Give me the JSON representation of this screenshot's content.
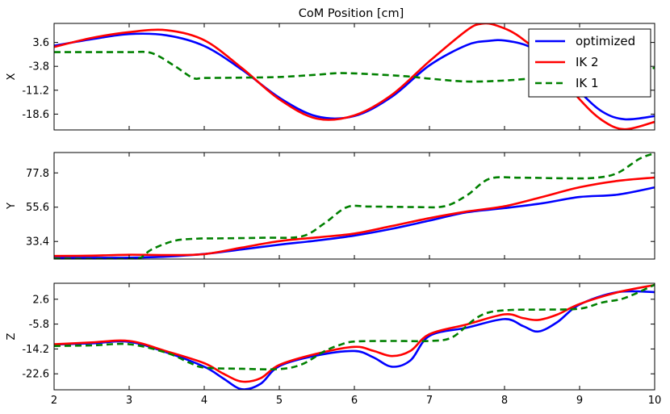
{
  "chart_data": [
    {
      "type": "line",
      "title": "CoM Position [cm]",
      "ylabel": "X",
      "xlim": [
        2,
        10
      ],
      "ylim": [
        -23.5,
        9.5
      ],
      "yticks": [
        3.6,
        -3.8,
        -11.2,
        -18.6
      ],
      "grid": false,
      "legend": {
        "placement": "top-right",
        "entries": [
          "optimized",
          "IK 2",
          "IK 1"
        ]
      },
      "series": [
        {
          "name": "optimized",
          "color": "#0000ff",
          "style": "solid",
          "x": [
            2,
            2.5,
            3,
            3.5,
            4,
            4.5,
            5,
            5.5,
            6,
            6.5,
            7,
            7.5,
            7.8,
            8,
            8.3,
            8.6,
            9,
            9.3,
            9.6,
            10
          ],
          "y": [
            2.6,
            4.6,
            6.2,
            5.8,
            2.5,
            -4.8,
            -13.5,
            -19.3,
            -19.2,
            -13.2,
            -3.5,
            2.8,
            4.1,
            4.2,
            2.6,
            -1.6,
            -11.6,
            -17.8,
            -20.2,
            -19.2
          ]
        },
        {
          "name": "IK 2",
          "color": "#ff0000",
          "style": "solid",
          "x": [
            2,
            2.5,
            3,
            3.5,
            4,
            4.5,
            5,
            5.5,
            6,
            6.5,
            7,
            7.5,
            7.7,
            7.9,
            8.2,
            8.6,
            9,
            9.3,
            9.6,
            10
          ],
          "y": [
            2.2,
            5.0,
            6.8,
            7.4,
            4.3,
            -4.3,
            -14.0,
            -20.0,
            -19.0,
            -12.6,
            -2.2,
            7.4,
            9.4,
            8.8,
            5.4,
            -2.8,
            -14.0,
            -20.5,
            -23.3,
            -21.0
          ],
          "note": ""
        },
        {
          "name": "IK 1",
          "color": "#008000",
          "style": "dashed",
          "x": [
            2,
            2.5,
            3,
            3.3,
            3.6,
            3.85,
            4,
            4.5,
            5,
            5.5,
            5.8,
            6.2,
            6.7,
            7,
            7.5,
            8,
            8.5,
            9,
            9.5,
            10
          ],
          "y": [
            0.6,
            0.6,
            0.6,
            0.3,
            -3.6,
            -7.4,
            -7.4,
            -7.3,
            -7.1,
            -6.4,
            -5.9,
            -6.2,
            -6.9,
            -7.6,
            -8.5,
            -8.2,
            -7.4,
            -7.6,
            -8.2,
            -4.2
          ]
        }
      ]
    },
    {
      "type": "line",
      "ylabel": "Y",
      "xlim": [
        2,
        10
      ],
      "ylim": [
        22,
        91
      ],
      "yticks": [
        77.8,
        55.6,
        33.4
      ],
      "grid": false,
      "series": [
        {
          "name": "optimized",
          "color": "#0000ff",
          "style": "solid",
          "x": [
            2,
            2.5,
            3,
            3.5,
            4,
            4.5,
            5,
            5.5,
            6,
            6.5,
            7,
            7.5,
            8,
            8.5,
            9,
            9.5,
            10
          ],
          "y": [
            22.8,
            22.8,
            22.9,
            23.6,
            25.3,
            28.2,
            31.3,
            34.0,
            37.2,
            41.6,
            46.9,
            52.3,
            55.0,
            58.1,
            62.2,
            63.7,
            68.4
          ]
        },
        {
          "name": "IK 2",
          "color": "#ff0000",
          "style": "solid",
          "x": [
            2,
            2.5,
            3,
            3.5,
            4,
            4.5,
            5,
            5.5,
            6,
            6.5,
            7,
            7.5,
            8,
            8.5,
            9,
            9.5,
            10
          ],
          "y": [
            24.0,
            24.2,
            24.8,
            24.6,
            25.2,
            29.4,
            33.6,
            36.0,
            38.5,
            43.4,
            48.5,
            52.8,
            56.2,
            62.2,
            68.5,
            72.6,
            74.8
          ]
        },
        {
          "name": "IK 1",
          "color": "#008000",
          "style": "dashed",
          "x": [
            2,
            2.5,
            3,
            3.15,
            3.3,
            3.6,
            3.9,
            4.2,
            4.8,
            5.3,
            5.6,
            5.9,
            6.2,
            6.8,
            7.2,
            7.5,
            7.8,
            8.2,
            8.8,
            9.2,
            9.5,
            9.8,
            10
          ],
          "y": [
            22.3,
            22.0,
            22.0,
            22.8,
            28.2,
            33.8,
            35.2,
            35.4,
            35.8,
            36.7,
            45.1,
            55.6,
            56.0,
            55.7,
            56.2,
            63.3,
            74.0,
            74.7,
            74.3,
            74.6,
            77.6,
            87.0,
            90.5
          ]
        }
      ]
    },
    {
      "type": "line",
      "ylabel": "Z",
      "xlim": [
        2,
        10
      ],
      "ylim": [
        -28,
        8
      ],
      "yticks": [
        2.6,
        -5.8,
        -14.2,
        -22.6
      ],
      "xticks": [
        2,
        3,
        4,
        5,
        6,
        7,
        8,
        9,
        10
      ],
      "grid": false,
      "series": [
        {
          "name": "optimized",
          "color": "#0000ff",
          "style": "solid",
          "x": [
            2,
            2.5,
            3,
            3.5,
            4,
            4.25,
            4.5,
            4.75,
            5,
            5.5,
            6,
            6.25,
            6.5,
            6.75,
            7,
            7.5,
            8,
            8.25,
            8.45,
            8.7,
            9,
            9.5,
            10
          ],
          "y": [
            -12.7,
            -12.3,
            -11.8,
            -15.4,
            -20.2,
            -24.1,
            -27.8,
            -26.0,
            -20.0,
            -16.4,
            -14.9,
            -17.0,
            -20.2,
            -18.0,
            -9.8,
            -7.0,
            -4.1,
            -6.5,
            -8.3,
            -5.2,
            0.8,
            5.0,
            5.0
          ]
        },
        {
          "name": "IK 2",
          "color": "#ff0000",
          "style": "solid",
          "x": [
            2,
            2.5,
            3,
            3.5,
            4,
            4.25,
            4.5,
            4.75,
            5,
            5.5,
            6,
            6.25,
            6.5,
            6.75,
            7,
            7.5,
            8,
            8.25,
            8.45,
            8.7,
            9,
            9.5,
            10
          ],
          "y": [
            -12.6,
            -12.0,
            -11.5,
            -15.0,
            -19.0,
            -22.5,
            -25.2,
            -24.1,
            -19.6,
            -15.8,
            -13.5,
            -14.8,
            -16.6,
            -14.8,
            -9.2,
            -5.9,
            -2.5,
            -3.8,
            -4.4,
            -2.6,
            1.0,
            4.9,
            7.4
          ]
        },
        {
          "name": "IK 1",
          "color": "#008000",
          "style": "dashed",
          "x": [
            2,
            2.5,
            3,
            3.5,
            3.8,
            4,
            4.5,
            5,
            5.3,
            5.6,
            5.8,
            6,
            6.5,
            7,
            7.3,
            7.6,
            7.8,
            8.1,
            8.5,
            9,
            9.3,
            9.6,
            10
          ],
          "y": [
            -13.2,
            -13.0,
            -12.6,
            -15.5,
            -18.8,
            -20.5,
            -20.9,
            -21.0,
            -19.4,
            -15.0,
            -12.9,
            -11.7,
            -11.5,
            -11.5,
            -10.3,
            -4.2,
            -1.8,
            -1.0,
            -0.9,
            -0.6,
            1.5,
            3.0,
            7.5
          ]
        }
      ]
    }
  ]
}
